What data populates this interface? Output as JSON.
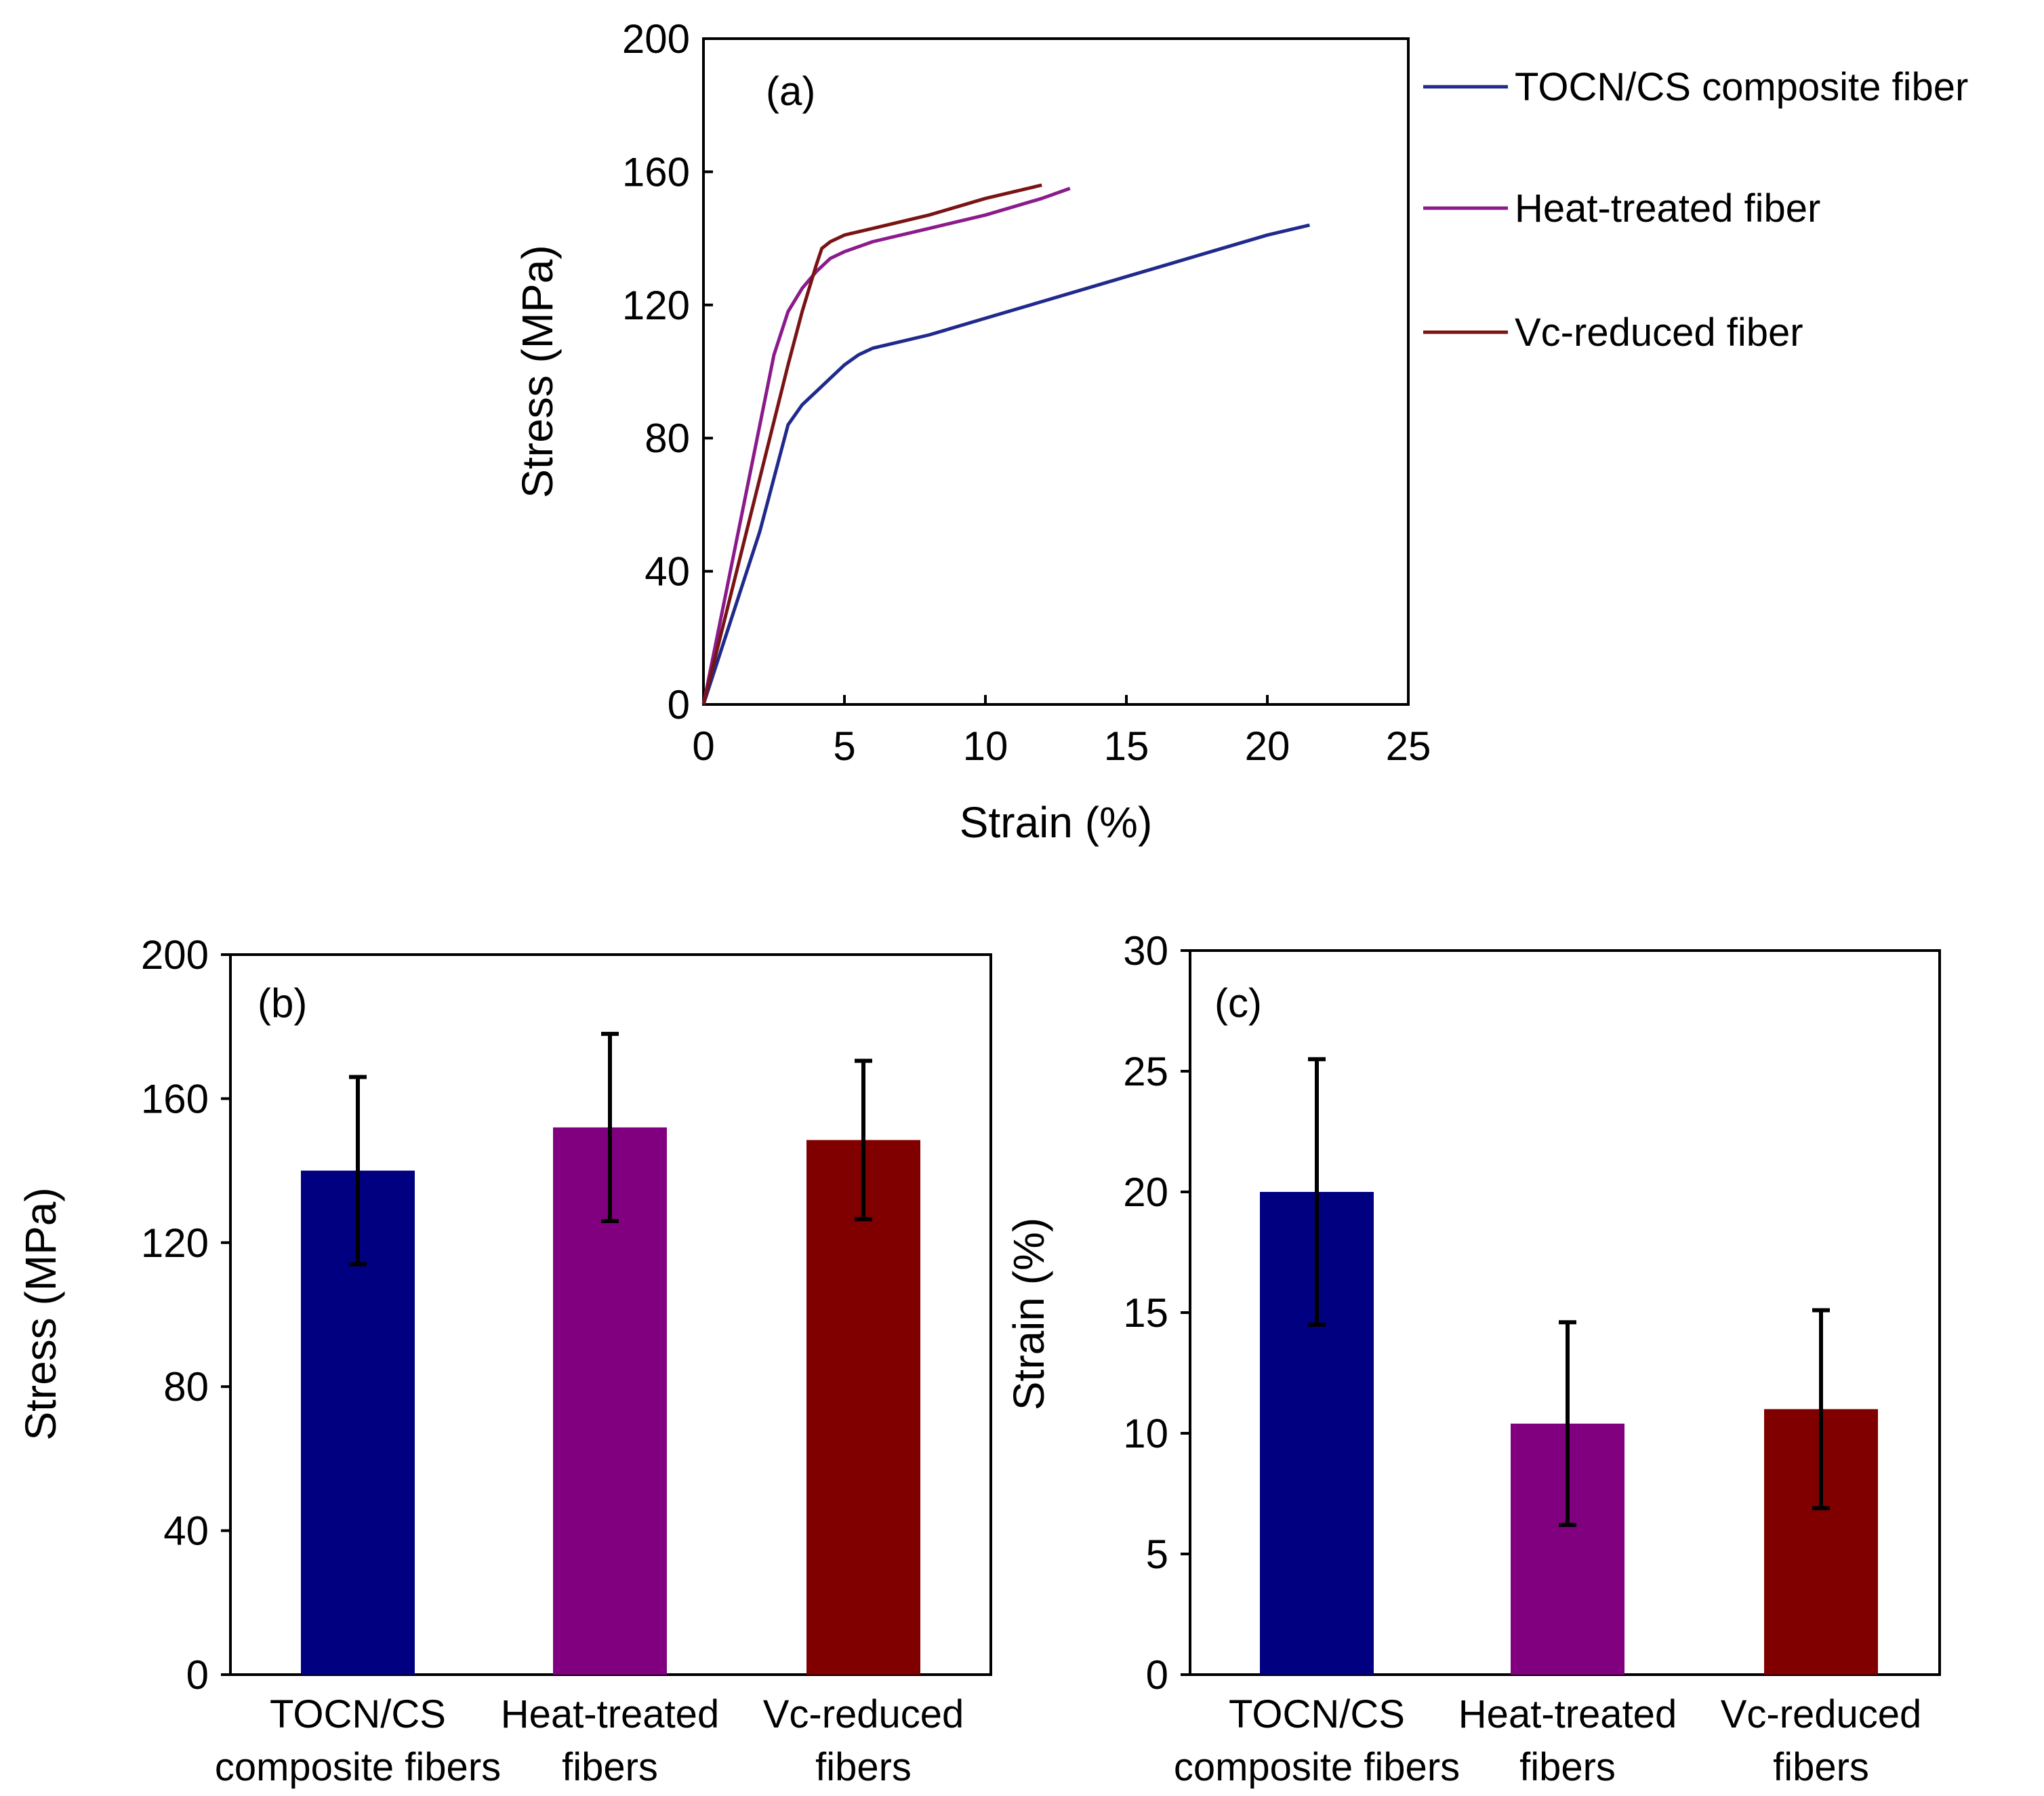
{
  "chart_data": [
    {
      "panel": "(a)",
      "type": "line",
      "xlabel": "Strain (%)",
      "ylabel": "Stress (MPa)",
      "xlim": [
        0,
        25
      ],
      "ylim": [
        0,
        200
      ],
      "xticks": [
        0,
        5,
        10,
        15,
        20,
        25
      ],
      "yticks": [
        0,
        40,
        80,
        120,
        160,
        200
      ],
      "legend_position": "right",
      "series": [
        {
          "name": "TOCN/CS composite fiber",
          "color": "#1f2a8c",
          "x": [
            0,
            1,
            2,
            2.5,
            3,
            3.5,
            4,
            4.5,
            5,
            5.5,
            6,
            6.5,
            8,
            10,
            12,
            14,
            16,
            18,
            20,
            21.5
          ],
          "y": [
            0,
            26,
            52,
            68,
            84,
            90,
            94,
            98,
            102,
            105,
            107,
            108,
            111,
            116,
            121,
            126,
            131,
            136,
            141,
            144
          ]
        },
        {
          "name": "Heat-treated fiber",
          "color": "#8b1a8b",
          "x": [
            0,
            1,
            2,
            2.5,
            3,
            3.5,
            4,
            4.5,
            5,
            6,
            8,
            10,
            12,
            13
          ],
          "y": [
            0,
            42,
            84,
            105,
            118,
            125,
            130,
            134,
            136,
            139,
            143,
            147,
            152,
            155
          ]
        },
        {
          "name": "Vc-reduced fiber",
          "color": "#7a1414",
          "x": [
            0,
            1,
            2,
            3,
            3.5,
            4,
            4.2,
            4.5,
            5,
            6,
            7,
            8,
            10,
            12
          ],
          "y": [
            0,
            34,
            68,
            102,
            118,
            132,
            137,
            139,
            141,
            143,
            145,
            147,
            152,
            156
          ]
        }
      ]
    },
    {
      "panel": "(b)",
      "type": "bar",
      "ylabel": "Stress (MPa)",
      "ylim": [
        0,
        200
      ],
      "yticks": [
        0,
        40,
        80,
        120,
        160,
        200
      ],
      "categories": [
        [
          "TOCN/CS",
          "composite fibers"
        ],
        [
          "Heat-treated",
          "fibers"
        ],
        [
          "Vc-reduced",
          "fibers"
        ]
      ],
      "values": [
        140,
        152,
        148.5
      ],
      "errors": [
        26,
        26,
        22
      ],
      "colors": [
        "#000080",
        "#800080",
        "#800000"
      ]
    },
    {
      "panel": "(c)",
      "type": "bar",
      "ylabel": "Strain (%)",
      "ylim": [
        0,
        30
      ],
      "yticks": [
        0,
        5,
        10,
        15,
        20,
        25,
        30
      ],
      "categories": [
        [
          "TOCN/CS",
          "composite fibers"
        ],
        [
          "Heat-treated",
          "fibers"
        ],
        [
          "Vc-reduced",
          "fibers"
        ]
      ],
      "values": [
        20,
        10.4,
        11
      ],
      "errors": [
        5.5,
        4.2,
        4.1
      ],
      "colors": [
        "#000080",
        "#800080",
        "#800000"
      ]
    }
  ]
}
